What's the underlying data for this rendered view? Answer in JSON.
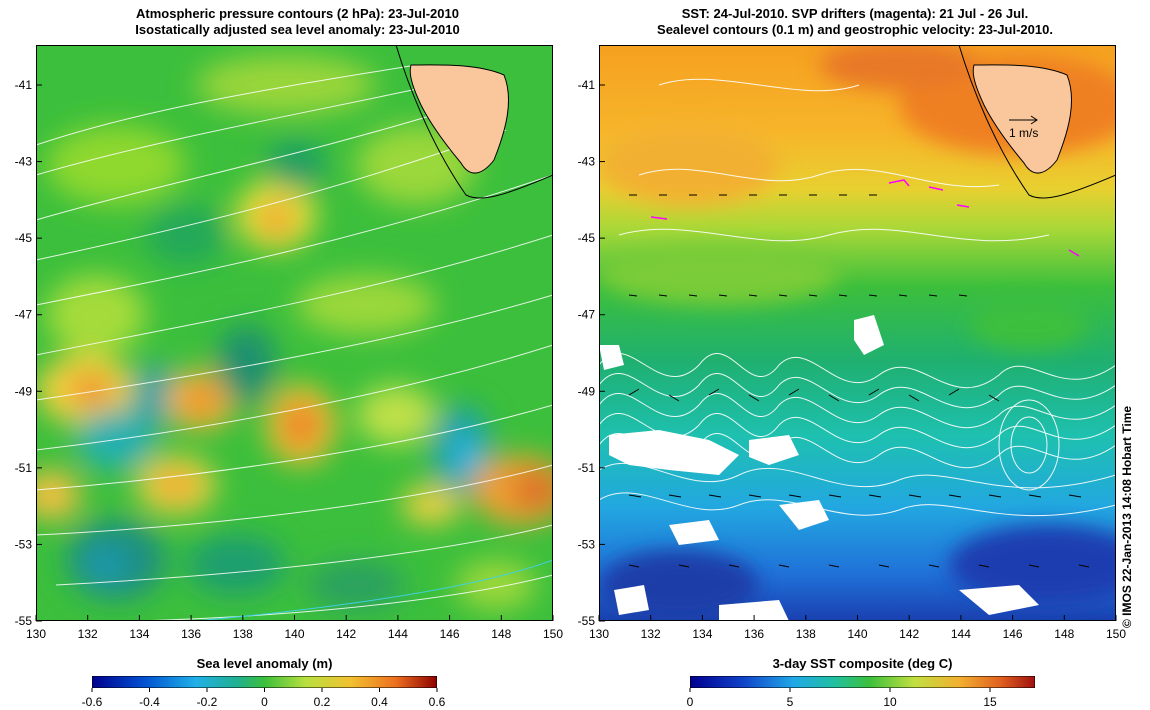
{
  "left_panel": {
    "title_line1": "Atmospheric pressure contours (2 hPa): 23-Jul-2010",
    "title_line2": "Isostatically adjusted sea level anomaly: 23-Jul-2010",
    "colorbar_label": "Sea level anomaly (m)",
    "colorbar_ticks": [
      "-0.6",
      "-0.4",
      "-0.2",
      "0",
      "0.2",
      "0.4",
      "0.6"
    ]
  },
  "right_panel": {
    "title_line1": "SST: 24-Jul-2010. SVP drifters (magenta): 21 Jul - 26 Jul.",
    "title_line2": "Sealevel contours (0.1 m) and geostrophic velocity: 23-Jul-2010.",
    "colorbar_label": "3-day SST composite (deg C)",
    "colorbar_ticks": [
      "0",
      "5",
      "10",
      "15"
    ],
    "velocity_scale_label": "1 m/s"
  },
  "axes": {
    "x_ticks": [
      "130",
      "132",
      "134",
      "136",
      "138",
      "140",
      "142",
      "144",
      "146",
      "148",
      "150"
    ],
    "y_ticks": [
      "-41",
      "-43",
      "-45",
      "-47",
      "-49",
      "-51",
      "-53",
      "-55"
    ]
  },
  "credit": "© IMOS 22-Jan-2013 14:08 Hobart Time",
  "colors": {
    "land": "#f9c79b",
    "contour": "#ffffff",
    "drifter": "#ff00ff",
    "coast": "#000000"
  }
}
